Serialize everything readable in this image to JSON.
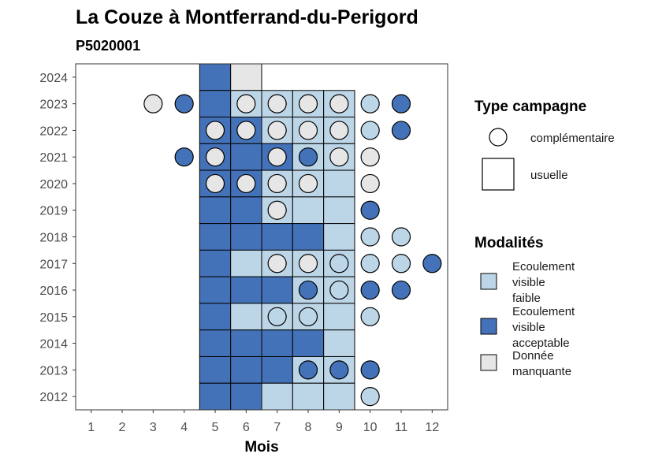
{
  "chart_data": {
    "type": "heatmap",
    "title": "La Couze à Montferrand-du-Perigord",
    "subtitle": "P5020001",
    "xlabel": "Mois",
    "ylabel": "",
    "x_ticks": [
      "1",
      "2",
      "3",
      "4",
      "5",
      "6",
      "7",
      "8",
      "9",
      "10",
      "11",
      "12"
    ],
    "y_ticks": [
      "2012",
      "2013",
      "2014",
      "2015",
      "2016",
      "2017",
      "2018",
      "2019",
      "2020",
      "2021",
      "2022",
      "2023",
      "2024"
    ],
    "xlim": [
      0.5,
      12.5
    ],
    "ylim": [
      2011.5,
      2024.5
    ],
    "colors": {
      "Ecoulement visible faible": "#bcd6e8",
      "Ecoulement visible acceptable": "#4472b8",
      "Donnée manquante": "#e6e6e6"
    },
    "legend_type": {
      "title": "Type campagne",
      "items": [
        {
          "label": "complémentaire",
          "shape": "circle"
        },
        {
          "label": "usuelle",
          "shape": "square"
        }
      ]
    },
    "legend_modalites": {
      "title": "Modalités",
      "items": [
        {
          "lines": [
            "Ecoulement",
            "visible",
            "faible"
          ],
          "key": "Ecoulement visible faible"
        },
        {
          "lines": [
            "Ecoulement",
            "visible",
            "acceptable"
          ],
          "key": "Ecoulement visible acceptable"
        },
        {
          "lines": [
            "Donnée",
            "manquante"
          ],
          "key": "Donnée manquante"
        }
      ]
    },
    "usuelle": [
      {
        "year": 2024,
        "month": 5,
        "modalite": "Ecoulement visible acceptable"
      },
      {
        "year": 2024,
        "month": 6,
        "modalite": "Donnée manquante"
      },
      {
        "year": 2023,
        "month": 5,
        "modalite": "Ecoulement visible acceptable"
      },
      {
        "year": 2023,
        "month": 6,
        "modalite": "Ecoulement visible faible"
      },
      {
        "year": 2023,
        "month": 7,
        "modalite": "Ecoulement visible faible"
      },
      {
        "year": 2023,
        "month": 8,
        "modalite": "Ecoulement visible faible"
      },
      {
        "year": 2023,
        "month": 9,
        "modalite": "Ecoulement visible faible"
      },
      {
        "year": 2022,
        "month": 5,
        "modalite": "Ecoulement visible acceptable"
      },
      {
        "year": 2022,
        "month": 6,
        "modalite": "Ecoulement visible acceptable"
      },
      {
        "year": 2022,
        "month": 7,
        "modalite": "Ecoulement visible faible"
      },
      {
        "year": 2022,
        "month": 8,
        "modalite": "Ecoulement visible faible"
      },
      {
        "year": 2022,
        "month": 9,
        "modalite": "Ecoulement visible faible"
      },
      {
        "year": 2021,
        "month": 5,
        "modalite": "Ecoulement visible acceptable"
      },
      {
        "year": 2021,
        "month": 6,
        "modalite": "Ecoulement visible acceptable"
      },
      {
        "year": 2021,
        "month": 7,
        "modalite": "Ecoulement visible acceptable"
      },
      {
        "year": 2021,
        "month": 8,
        "modalite": "Ecoulement visible faible"
      },
      {
        "year": 2021,
        "month": 9,
        "modalite": "Ecoulement visible faible"
      },
      {
        "year": 2020,
        "month": 5,
        "modalite": "Ecoulement visible acceptable"
      },
      {
        "year": 2020,
        "month": 6,
        "modalite": "Ecoulement visible acceptable"
      },
      {
        "year": 2020,
        "month": 7,
        "modalite": "Ecoulement visible faible"
      },
      {
        "year": 2020,
        "month": 8,
        "modalite": "Ecoulement visible faible"
      },
      {
        "year": 2020,
        "month": 9,
        "modalite": "Ecoulement visible faible"
      },
      {
        "year": 2019,
        "month": 5,
        "modalite": "Ecoulement visible acceptable"
      },
      {
        "year": 2019,
        "month": 6,
        "modalite": "Ecoulement visible acceptable"
      },
      {
        "year": 2019,
        "month": 7,
        "modalite": "Ecoulement visible faible"
      },
      {
        "year": 2019,
        "month": 8,
        "modalite": "Ecoulement visible faible"
      },
      {
        "year": 2019,
        "month": 9,
        "modalite": "Ecoulement visible faible"
      },
      {
        "year": 2018,
        "month": 5,
        "modalite": "Ecoulement visible acceptable"
      },
      {
        "year": 2018,
        "month": 6,
        "modalite": "Ecoulement visible acceptable"
      },
      {
        "year": 2018,
        "month": 7,
        "modalite": "Ecoulement visible acceptable"
      },
      {
        "year": 2018,
        "month": 8,
        "modalite": "Ecoulement visible acceptable"
      },
      {
        "year": 2018,
        "month": 9,
        "modalite": "Ecoulement visible faible"
      },
      {
        "year": 2017,
        "month": 5,
        "modalite": "Ecoulement visible acceptable"
      },
      {
        "year": 2017,
        "month": 6,
        "modalite": "Ecoulement visible faible"
      },
      {
        "year": 2017,
        "month": 7,
        "modalite": "Ecoulement visible faible"
      },
      {
        "year": 2017,
        "month": 8,
        "modalite": "Ecoulement visible faible"
      },
      {
        "year": 2017,
        "month": 9,
        "modalite": "Ecoulement visible faible"
      },
      {
        "year": 2016,
        "month": 5,
        "modalite": "Ecoulement visible acceptable"
      },
      {
        "year": 2016,
        "month": 6,
        "modalite": "Ecoulement visible acceptable"
      },
      {
        "year": 2016,
        "month": 7,
        "modalite": "Ecoulement visible acceptable"
      },
      {
        "year": 2016,
        "month": 8,
        "modalite": "Ecoulement visible faible"
      },
      {
        "year": 2016,
        "month": 9,
        "modalite": "Ecoulement visible faible"
      },
      {
        "year": 2015,
        "month": 5,
        "modalite": "Ecoulement visible acceptable"
      },
      {
        "year": 2015,
        "month": 6,
        "modalite": "Ecoulement visible faible"
      },
      {
        "year": 2015,
        "month": 7,
        "modalite": "Ecoulement visible faible"
      },
      {
        "year": 2015,
        "month": 8,
        "modalite": "Ecoulement visible faible"
      },
      {
        "year": 2015,
        "month": 9,
        "modalite": "Ecoulement visible faible"
      },
      {
        "year": 2014,
        "month": 5,
        "modalite": "Ecoulement visible acceptable"
      },
      {
        "year": 2014,
        "month": 6,
        "modalite": "Ecoulement visible acceptable"
      },
      {
        "year": 2014,
        "month": 7,
        "modalite": "Ecoulement visible acceptable"
      },
      {
        "year": 2014,
        "month": 8,
        "modalite": "Ecoulement visible acceptable"
      },
      {
        "year": 2014,
        "month": 9,
        "modalite": "Ecoulement visible faible"
      },
      {
        "year": 2013,
        "month": 5,
        "modalite": "Ecoulement visible acceptable"
      },
      {
        "year": 2013,
        "month": 6,
        "modalite": "Ecoulement visible acceptable"
      },
      {
        "year": 2013,
        "month": 7,
        "modalite": "Ecoulement visible acceptable"
      },
      {
        "year": 2013,
        "month": 8,
        "modalite": "Ecoulement visible faible"
      },
      {
        "year": 2013,
        "month": 9,
        "modalite": "Ecoulement visible faible"
      },
      {
        "year": 2012,
        "month": 5,
        "modalite": "Ecoulement visible acceptable"
      },
      {
        "year": 2012,
        "month": 6,
        "modalite": "Ecoulement visible acceptable"
      },
      {
        "year": 2012,
        "month": 7,
        "modalite": "Ecoulement visible faible"
      },
      {
        "year": 2012,
        "month": 8,
        "modalite": "Ecoulement visible faible"
      },
      {
        "year": 2012,
        "month": 9,
        "modalite": "Ecoulement visible faible"
      }
    ],
    "complementaire": [
      {
        "year": 2023,
        "month": 3,
        "modalite": "Donnée manquante"
      },
      {
        "year": 2023,
        "month": 4,
        "modalite": "Ecoulement visible acceptable"
      },
      {
        "year": 2023,
        "month": 6,
        "modalite": "Donnée manquante"
      },
      {
        "year": 2023,
        "month": 7,
        "modalite": "Donnée manquante"
      },
      {
        "year": 2023,
        "month": 8,
        "modalite": "Donnée manquante"
      },
      {
        "year": 2023,
        "month": 9,
        "modalite": "Donnée manquante"
      },
      {
        "year": 2023,
        "month": 10,
        "modalite": "Ecoulement visible faible"
      },
      {
        "year": 2023,
        "month": 11,
        "modalite": "Ecoulement visible acceptable"
      },
      {
        "year": 2022,
        "month": 5,
        "modalite": "Donnée manquante"
      },
      {
        "year": 2022,
        "month": 6,
        "modalite": "Donnée manquante"
      },
      {
        "year": 2022,
        "month": 7,
        "modalite": "Donnée manquante"
      },
      {
        "year": 2022,
        "month": 8,
        "modalite": "Donnée manquante"
      },
      {
        "year": 2022,
        "month": 9,
        "modalite": "Donnée manquante"
      },
      {
        "year": 2022,
        "month": 10,
        "modalite": "Ecoulement visible faible"
      },
      {
        "year": 2022,
        "month": 11,
        "modalite": "Ecoulement visible acceptable"
      },
      {
        "year": 2021,
        "month": 4,
        "modalite": "Ecoulement visible acceptable"
      },
      {
        "year": 2021,
        "month": 5,
        "modalite": "Donnée manquante"
      },
      {
        "year": 2021,
        "month": 7,
        "modalite": "Donnée manquante"
      },
      {
        "year": 2021,
        "month": 8,
        "modalite": "Ecoulement visible acceptable"
      },
      {
        "year": 2021,
        "month": 9,
        "modalite": "Donnée manquante"
      },
      {
        "year": 2021,
        "month": 10,
        "modalite": "Donnée manquante"
      },
      {
        "year": 2020,
        "month": 5,
        "modalite": "Donnée manquante"
      },
      {
        "year": 2020,
        "month": 6,
        "modalite": "Donnée manquante"
      },
      {
        "year": 2020,
        "month": 7,
        "modalite": "Donnée manquante"
      },
      {
        "year": 2020,
        "month": 8,
        "modalite": "Donnée manquante"
      },
      {
        "year": 2020,
        "month": 10,
        "modalite": "Donnée manquante"
      },
      {
        "year": 2019,
        "month": 7,
        "modalite": "Donnée manquante"
      },
      {
        "year": 2019,
        "month": 10,
        "modalite": "Ecoulement visible acceptable"
      },
      {
        "year": 2018,
        "month": 10,
        "modalite": "Ecoulement visible faible"
      },
      {
        "year": 2018,
        "month": 11,
        "modalite": "Ecoulement visible faible"
      },
      {
        "year": 2017,
        "month": 7,
        "modalite": "Donnée manquante"
      },
      {
        "year": 2017,
        "month": 8,
        "modalite": "Donnée manquante"
      },
      {
        "year": 2017,
        "month": 9,
        "modalite": "Ecoulement visible faible"
      },
      {
        "year": 2017,
        "month": 10,
        "modalite": "Ecoulement visible faible"
      },
      {
        "year": 2017,
        "month": 11,
        "modalite": "Ecoulement visible faible"
      },
      {
        "year": 2017,
        "month": 12,
        "modalite": "Ecoulement visible acceptable"
      },
      {
        "year": 2016,
        "month": 8,
        "modalite": "Ecoulement visible acceptable"
      },
      {
        "year": 2016,
        "month": 9,
        "modalite": "Ecoulement visible faible"
      },
      {
        "year": 2016,
        "month": 10,
        "modalite": "Ecoulement visible acceptable"
      },
      {
        "year": 2016,
        "month": 11,
        "modalite": "Ecoulement visible acceptable"
      },
      {
        "year": 2015,
        "month": 7,
        "modalite": "Ecoulement visible faible"
      },
      {
        "year": 2015,
        "month": 8,
        "modalite": "Ecoulement visible faible"
      },
      {
        "year": 2015,
        "month": 10,
        "modalite": "Ecoulement visible faible"
      },
      {
        "year": 2013,
        "month": 8,
        "modalite": "Ecoulement visible acceptable"
      },
      {
        "year": 2013,
        "month": 9,
        "modalite": "Ecoulement visible acceptable"
      },
      {
        "year": 2013,
        "month": 10,
        "modalite": "Ecoulement visible acceptable"
      },
      {
        "year": 2012,
        "month": 10,
        "modalite": "Ecoulement visible faible"
      }
    ]
  }
}
